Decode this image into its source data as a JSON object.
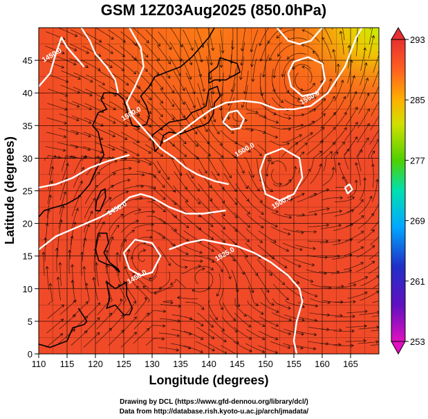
{
  "chart_data": {
    "type": "heatmap",
    "title": "GSM 12Z03Aug2025 (850.0hPa)",
    "xlabel": "Longitude (degrees)",
    "ylabel": "Latitude  (degrees)",
    "xlim": [
      110,
      170
    ],
    "ylim": [
      0,
      50
    ],
    "x_ticks": [
      "110",
      "115",
      "120",
      "125",
      "130",
      "135",
      "140",
      "145",
      "150",
      "155",
      "160",
      "165"
    ],
    "y_ticks": [
      "0",
      "5",
      "10",
      "15",
      "20",
      "25",
      "30",
      "35",
      "40",
      "45"
    ],
    "grid": true,
    "colorbar": {
      "range": [
        253,
        293
      ],
      "ticks": [
        "253",
        "261",
        "269",
        "277",
        "285",
        "293"
      ],
      "colors": [
        "#d010c0",
        "#3020c0",
        "#00a0ff",
        "#00e0a0",
        "#60d000",
        "#f0e000",
        "#ff9000",
        "#ff4020",
        "#e83020"
      ]
    },
    "contours": [
      {
        "label": "1450.0",
        "lon": 112.5,
        "lat": 45.5
      },
      {
        "label": "1500.0",
        "lon": 126.5,
        "lat": 36.5
      },
      {
        "label": "1450.0",
        "lon": 124.0,
        "lat": 22.0
      },
      {
        "label": "1500.0",
        "lon": 146.5,
        "lat": 31.0
      },
      {
        "label": "1550.0",
        "lon": 158.0,
        "lat": 39.0
      },
      {
        "label": "1500.0",
        "lon": 153.0,
        "lat": 23.0
      },
      {
        "label": "1525.0",
        "lon": 143.0,
        "lat": 15.0
      },
      {
        "label": "1450.0",
        "lon": 127.5,
        "lat": 11.5
      }
    ]
  },
  "credits": {
    "line1": "Drawing by DCL (https://www.gfd-dennou.org/library/dcl/)",
    "line2": "Data from http://database.rish.kyoto-u.ac.jp/arch/jmadata/"
  }
}
